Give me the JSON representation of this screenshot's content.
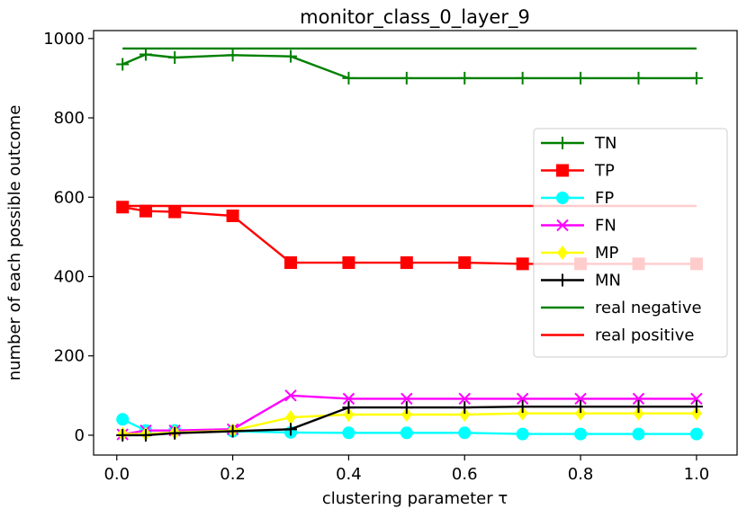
{
  "chart_data": {
    "type": "line",
    "title": "monitor_class_0_layer_9",
    "xlabel": "clustering parameter τ",
    "ylabel": "number of each possible outcome",
    "xlim": [
      -0.04,
      1.07
    ],
    "ylim": [
      -50,
      1020
    ],
    "xticks": [
      0.0,
      0.2,
      0.4,
      0.6,
      0.8,
      1.0
    ],
    "xtick_labels": [
      "0.0",
      "0.2",
      "0.4",
      "0.6",
      "0.8",
      "1.0"
    ],
    "yticks": [
      0,
      200,
      400,
      600,
      800,
      1000
    ],
    "ytick_labels": [
      "0",
      "200",
      "400",
      "600",
      "800",
      "1000"
    ],
    "grid": false,
    "legend_position": "center-right",
    "x": [
      0.01,
      0.05,
      0.1,
      0.2,
      0.3,
      0.4,
      0.5,
      0.6,
      0.7,
      0.8,
      0.9,
      1.0
    ],
    "series": [
      {
        "name": "TN",
        "color": "#008000",
        "marker": "plus",
        "values": [
          935,
          960,
          952,
          958,
          955,
          900,
          900,
          900,
          900,
          900,
          900,
          900
        ]
      },
      {
        "name": "TP",
        "color": "#ff0000",
        "marker": "square",
        "values": [
          575,
          565,
          563,
          553,
          435,
          435,
          435,
          435,
          432,
          432,
          432,
          432
        ]
      },
      {
        "name": "FP",
        "color": "#00ffff",
        "marker": "circle",
        "values": [
          40,
          12,
          12,
          10,
          7,
          6,
          6,
          6,
          3,
          3,
          3,
          3
        ]
      },
      {
        "name": "FN",
        "color": "#ff00ff",
        "marker": "x",
        "values": [
          2,
          12,
          12,
          15,
          100,
          92,
          92,
          92,
          92,
          92,
          92,
          92
        ]
      },
      {
        "name": "MP",
        "color": "#ffff00",
        "marker": "diamond",
        "values": [
          3,
          3,
          7,
          12,
          45,
          52,
          52,
          52,
          55,
          55,
          55,
          55
        ]
      },
      {
        "name": "MN",
        "color": "#000000",
        "marker": "plus",
        "values": [
          0,
          0,
          5,
          10,
          15,
          70,
          70,
          70,
          72,
          72,
          72,
          72
        ]
      },
      {
        "name": "real negative",
        "color": "#008000",
        "marker": "none",
        "x": [
          0.01,
          1.0
        ],
        "values": [
          975,
          975
        ]
      },
      {
        "name": "real positive",
        "color": "#ff0000",
        "marker": "none",
        "x": [
          0.01,
          1.0
        ],
        "values": [
          578,
          578
        ]
      }
    ]
  }
}
